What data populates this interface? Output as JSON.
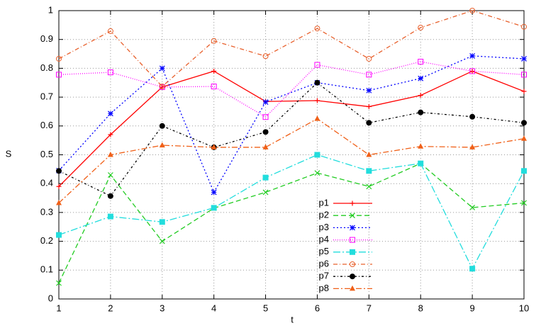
{
  "chart_data": {
    "type": "line",
    "x": [
      1,
      2,
      3,
      4,
      5,
      6,
      7,
      8,
      9,
      10
    ],
    "xlabel": "t",
    "ylabel": "S",
    "xlim": [
      1,
      10
    ],
    "xticks": [
      1,
      2,
      3,
      4,
      5,
      6,
      7,
      8,
      9,
      10
    ],
    "ylim": [
      0,
      1
    ],
    "yticks": [
      0,
      0.1,
      0.2,
      0.3,
      0.4,
      0.5,
      0.6,
      0.7,
      0.8,
      0.9,
      1
    ],
    "grid": true,
    "legend": "lower-center",
    "series": [
      {
        "name": "p1",
        "color": "#ff0000",
        "marker": "plus",
        "dash": "none",
        "values": [
          0.39,
          0.57,
          0.735,
          0.79,
          0.685,
          0.688,
          0.667,
          0.706,
          0.79,
          0.72
        ]
      },
      {
        "name": "p2",
        "color": "#22cc22",
        "marker": "cross",
        "dash": "7 4",
        "values": [
          0.055,
          0.43,
          0.2,
          0.315,
          0.37,
          0.437,
          0.39,
          0.47,
          0.317,
          0.333
        ]
      },
      {
        "name": "p3",
        "color": "#0000ff",
        "marker": "star",
        "dash": "2 3",
        "values": [
          0.445,
          0.643,
          0.8,
          0.37,
          0.683,
          0.75,
          0.723,
          0.765,
          0.843,
          0.833
        ]
      },
      {
        "name": "p4",
        "color": "#ff00ff",
        "marker": "square",
        "dash": "1 2",
        "values": [
          0.778,
          0.786,
          0.735,
          0.737,
          0.631,
          0.812,
          0.778,
          0.823,
          0.79,
          0.778
        ]
      },
      {
        "name": "p5",
        "color": "#22dddd",
        "marker": "filled-square",
        "dash": "10 3 2 3",
        "values": [
          0.222,
          0.286,
          0.267,
          0.316,
          0.421,
          0.5,
          0.444,
          0.47,
          0.105,
          0.444
        ]
      },
      {
        "name": "p6",
        "color": "#e8602c",
        "marker": "circle",
        "dash": "6 3 1 3",
        "values": [
          0.833,
          0.929,
          0.737,
          0.895,
          0.842,
          0.938,
          0.833,
          0.941,
          1.0,
          0.944
        ]
      },
      {
        "name": "p7",
        "color": "#000000",
        "marker": "filled-circle",
        "dash": "3 3 1 3",
        "values": [
          0.444,
          0.357,
          0.6,
          0.526,
          0.579,
          0.75,
          0.611,
          0.647,
          0.632,
          0.611
        ]
      },
      {
        "name": "p8",
        "color": "#f06018",
        "marker": "triangle",
        "dash": "8 3 2 3",
        "values": [
          0.333,
          0.5,
          0.533,
          0.526,
          0.526,
          0.625,
          0.5,
          0.529,
          0.526,
          0.556
        ]
      }
    ]
  }
}
